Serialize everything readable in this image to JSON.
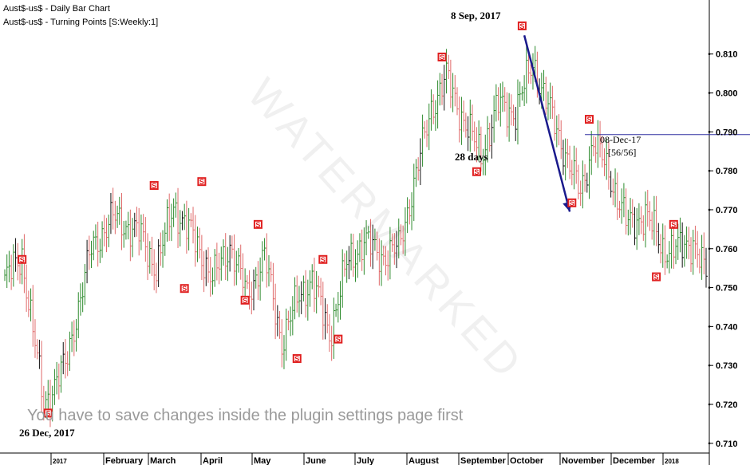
{
  "header": {
    "line1": "Aust$-us$ - Daily Bar Chart",
    "line2": "Aust$-us$ - Turning Points [S:Weekly:1]"
  },
  "notice": "You have to save changes inside the plugin settings page first",
  "watermark": "WATERMARKED",
  "colors": {
    "up": "#2e8b2e",
    "down": "#e06a6a",
    "neutral": "#111111",
    "marker": "#e02020",
    "arrow": "#1a1a8c",
    "hline": "#3030a0"
  },
  "chart_data": {
    "type": "ohlc-bar",
    "y_ticks": [
      "0.810",
      "0.800",
      "0.790",
      "0.780",
      "0.770",
      "0.760",
      "0.750",
      "0.740",
      "0.730",
      "0.720",
      "0.710"
    ],
    "ylim": [
      0.7075,
      0.8165
    ],
    "x_labels": [
      "2017",
      "February",
      "March",
      "April",
      "May",
      "June",
      "July",
      "August",
      "September",
      "October",
      "November",
      "December",
      "2018"
    ],
    "anchors": [
      {
        "i": 0,
        "v": 0.752
      },
      {
        "i": 8,
        "v": 0.758
      },
      {
        "i": 18,
        "v": 0.72
      },
      {
        "i": 28,
        "v": 0.73
      },
      {
        "i": 40,
        "v": 0.76
      },
      {
        "i": 50,
        "v": 0.768
      },
      {
        "i": 62,
        "v": 0.764
      },
      {
        "i": 70,
        "v": 0.755
      },
      {
        "i": 78,
        "v": 0.771
      },
      {
        "i": 88,
        "v": 0.762
      },
      {
        "i": 96,
        "v": 0.752
      },
      {
        "i": 104,
        "v": 0.761
      },
      {
        "i": 112,
        "v": 0.748
      },
      {
        "i": 120,
        "v": 0.758
      },
      {
        "i": 128,
        "v": 0.736
      },
      {
        "i": 136,
        "v": 0.748
      },
      {
        "i": 142,
        "v": 0.752
      },
      {
        "i": 150,
        "v": 0.738
      },
      {
        "i": 158,
        "v": 0.756
      },
      {
        "i": 166,
        "v": 0.762
      },
      {
        "i": 174,
        "v": 0.758
      },
      {
        "i": 182,
        "v": 0.76
      },
      {
        "i": 190,
        "v": 0.779
      },
      {
        "i": 197,
        "v": 0.796
      },
      {
        "i": 204,
        "v": 0.804
      },
      {
        "i": 212,
        "v": 0.793
      },
      {
        "i": 220,
        "v": 0.784
      },
      {
        "i": 228,
        "v": 0.797
      },
      {
        "i": 236,
        "v": 0.795
      },
      {
        "i": 244,
        "v": 0.808
      },
      {
        "i": 250,
        "v": 0.798
      },
      {
        "i": 258,
        "v": 0.786
      },
      {
        "i": 266,
        "v": 0.774
      },
      {
        "i": 272,
        "v": 0.788
      },
      {
        "i": 280,
        "v": 0.778
      },
      {
        "i": 288,
        "v": 0.766
      },
      {
        "i": 296,
        "v": 0.769
      },
      {
        "i": 304,
        "v": 0.76
      },
      {
        "i": 312,
        "v": 0.76
      },
      {
        "i": 318,
        "v": 0.762
      },
      {
        "i": 324,
        "v": 0.753
      }
    ],
    "bar_count": 325,
    "turning_points": [
      {
        "label": "S",
        "i": 8,
        "v": 0.756,
        "pos": "above"
      },
      {
        "label": "S",
        "i": 20,
        "v": 0.719,
        "pos": "below"
      },
      {
        "label": "S",
        "i": 69,
        "v": 0.775,
        "pos": "above"
      },
      {
        "label": "S",
        "i": 83,
        "v": 0.751,
        "pos": "below"
      },
      {
        "label": "S",
        "i": 91,
        "v": 0.776,
        "pos": "above"
      },
      {
        "label": "S",
        "i": 111,
        "v": 0.748,
        "pos": "below"
      },
      {
        "label": "S",
        "i": 117,
        "v": 0.765,
        "pos": "above"
      },
      {
        "label": "S",
        "i": 135,
        "v": 0.733,
        "pos": "below"
      },
      {
        "label": "S",
        "i": 147,
        "v": 0.756,
        "pos": "above"
      },
      {
        "label": "S",
        "i": 154,
        "v": 0.738,
        "pos": "below"
      },
      {
        "label": "S",
        "i": 202,
        "v": 0.808,
        "pos": "above"
      },
      {
        "label": "S",
        "i": 218,
        "v": 0.781,
        "pos": "below"
      },
      {
        "label": "S",
        "i": 239,
        "v": 0.816,
        "pos": "above"
      },
      {
        "label": "S",
        "i": 262,
        "v": 0.773,
        "pos": "below"
      },
      {
        "label": "S",
        "i": 270,
        "v": 0.792,
        "pos": "above"
      },
      {
        "label": "S",
        "i": 301,
        "v": 0.754,
        "pos": "below"
      },
      {
        "label": "S",
        "i": 309,
        "v": 0.765,
        "pos": "above"
      }
    ],
    "arrow": {
      "from": {
        "i": 240,
        "v": 0.8148
      },
      "to": {
        "i": 261,
        "v": 0.7695
      },
      "label": "28 days"
    },
    "hline": {
      "v": 0.7893,
      "start_i": 268,
      "label": "08-Dec-17",
      "sublabel": "[56/56]"
    },
    "annotations": {
      "peak": "8 Sep, 2017",
      "low": "26 Dec, 2017"
    }
  }
}
